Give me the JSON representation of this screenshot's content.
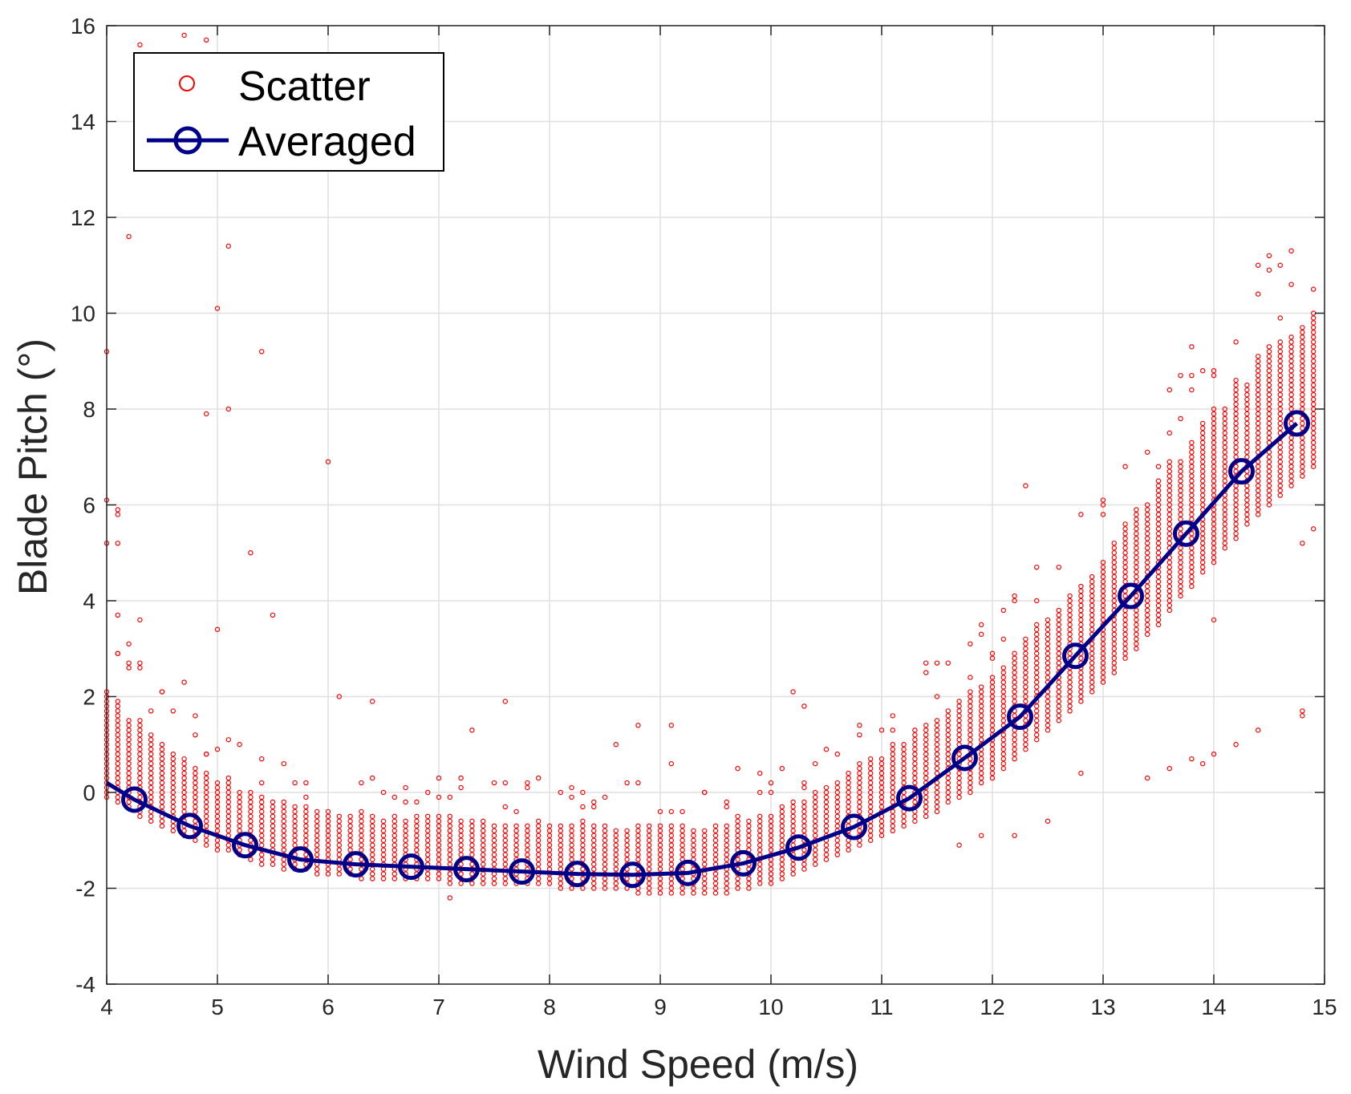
{
  "chart_data": {
    "type": "scatter",
    "title": "",
    "xlabel": "Wind Speed (m/s)",
    "ylabel": "Blade Pitch  (°)",
    "xlim": [
      4,
      15
    ],
    "ylim": [
      -4,
      16
    ],
    "xticks": [
      4,
      5,
      6,
      7,
      8,
      9,
      10,
      11,
      12,
      13,
      14,
      15
    ],
    "yticks": [
      -4,
      -2,
      0,
      2,
      4,
      6,
      8,
      10,
      12,
      14,
      16
    ],
    "grid": true,
    "legend_position": "top-left",
    "colors": {
      "scatter": "#ff0000",
      "averaged": "#00008b",
      "grid": "#e0e0e0",
      "axis": "#262626"
    },
    "series": [
      {
        "name": "Scatter",
        "kind": "scatter",
        "band_center": [
          [
            4.0,
            0.9
          ],
          [
            4.5,
            0.1
          ],
          [
            5.0,
            -0.5
          ],
          [
            5.5,
            -0.9
          ],
          [
            6.0,
            -1.1
          ],
          [
            6.5,
            -1.2
          ],
          [
            7.0,
            -1.25
          ],
          [
            7.5,
            -1.3
          ],
          [
            8.0,
            -1.35
          ],
          [
            8.5,
            -1.4
          ],
          [
            9.0,
            -1.45
          ],
          [
            9.5,
            -1.45
          ],
          [
            10.0,
            -1.2
          ],
          [
            10.5,
            -0.7
          ],
          [
            11.0,
            -0.1
          ],
          [
            11.5,
            0.5
          ],
          [
            12.0,
            1.3
          ],
          [
            12.5,
            2.4
          ],
          [
            13.0,
            3.5
          ],
          [
            13.5,
            4.9
          ],
          [
            14.0,
            6.3
          ],
          [
            14.5,
            7.5
          ],
          [
            14.9,
            8.3
          ]
        ],
        "band_halfwidth": [
          [
            4.0,
            1.3
          ],
          [
            5.0,
            0.9
          ],
          [
            6.0,
            0.8
          ],
          [
            8.0,
            0.8
          ],
          [
            10.0,
            0.9
          ],
          [
            11.0,
            1.0
          ],
          [
            12.0,
            1.3
          ],
          [
            13.0,
            1.6
          ],
          [
            14.0,
            1.9
          ],
          [
            14.9,
            1.9
          ]
        ],
        "outliers": [
          [
            4.0,
            9.2
          ],
          [
            4.0,
            6.1
          ],
          [
            4.0,
            5.2
          ],
          [
            4.1,
            5.9
          ],
          [
            4.1,
            5.8
          ],
          [
            4.1,
            5.2
          ],
          [
            4.2,
            11.6
          ],
          [
            4.3,
            15.6
          ],
          [
            4.3,
            3.6
          ],
          [
            4.3,
            2.7
          ],
          [
            4.2,
            3.1
          ],
          [
            4.1,
            3.7
          ],
          [
            4.7,
            15.8
          ],
          [
            4.9,
            15.7
          ],
          [
            4.9,
            7.9
          ],
          [
            5.0,
            10.1
          ],
          [
            5.0,
            3.4
          ],
          [
            5.1,
            11.4
          ],
          [
            5.1,
            8.0
          ],
          [
            5.3,
            5.0
          ],
          [
            5.4,
            9.2
          ],
          [
            5.5,
            3.7
          ],
          [
            6.0,
            6.9
          ],
          [
            6.1,
            2.0
          ],
          [
            6.4,
            1.9
          ],
          [
            4.7,
            2.3
          ],
          [
            7.3,
            1.3
          ],
          [
            7.6,
            1.9
          ],
          [
            7.1,
            -2.2
          ],
          [
            8.6,
            1.0
          ],
          [
            8.8,
            1.4
          ],
          [
            9.1,
            1.4
          ],
          [
            9.1,
            0.6
          ],
          [
            10.2,
            2.1
          ],
          [
            10.3,
            1.8
          ],
          [
            12.3,
            6.4
          ],
          [
            12.8,
            0.4
          ],
          [
            13.0,
            6.1
          ],
          [
            13.4,
            0.3
          ],
          [
            13.6,
            0.5
          ],
          [
            13.8,
            0.7
          ],
          [
            13.9,
            0.6
          ],
          [
            14.0,
            0.8
          ],
          [
            14.2,
            1.0
          ],
          [
            14.4,
            1.3
          ],
          [
            14.8,
            1.7
          ],
          [
            14.8,
            1.6
          ],
          [
            14.0,
            3.6
          ],
          [
            13.8,
            9.3
          ],
          [
            14.9,
            10.5
          ],
          [
            14.8,
            5.2
          ],
          [
            14.9,
            5.5
          ],
          [
            12.5,
            -0.6
          ],
          [
            11.9,
            -0.9
          ],
          [
            12.2,
            -0.9
          ],
          [
            11.7,
            -1.1
          ]
        ]
      },
      {
        "name": "Averaged",
        "kind": "line",
        "x": [
          4.25,
          4.75,
          5.25,
          5.75,
          6.25,
          6.75,
          7.25,
          7.75,
          8.25,
          8.75,
          9.25,
          9.75,
          10.25,
          10.75,
          11.25,
          11.75,
          12.25,
          12.75,
          13.25,
          13.75,
          14.25,
          14.75
        ],
        "y": [
          -0.15,
          -0.7,
          -1.1,
          -1.4,
          -1.5,
          -1.55,
          -1.6,
          -1.65,
          -1.7,
          -1.72,
          -1.68,
          -1.48,
          -1.15,
          -0.72,
          -0.12,
          0.72,
          1.58,
          2.85,
          4.1,
          5.4,
          6.7,
          7.7
        ],
        "start_point": [
          4.0,
          0.2
        ]
      }
    ]
  }
}
